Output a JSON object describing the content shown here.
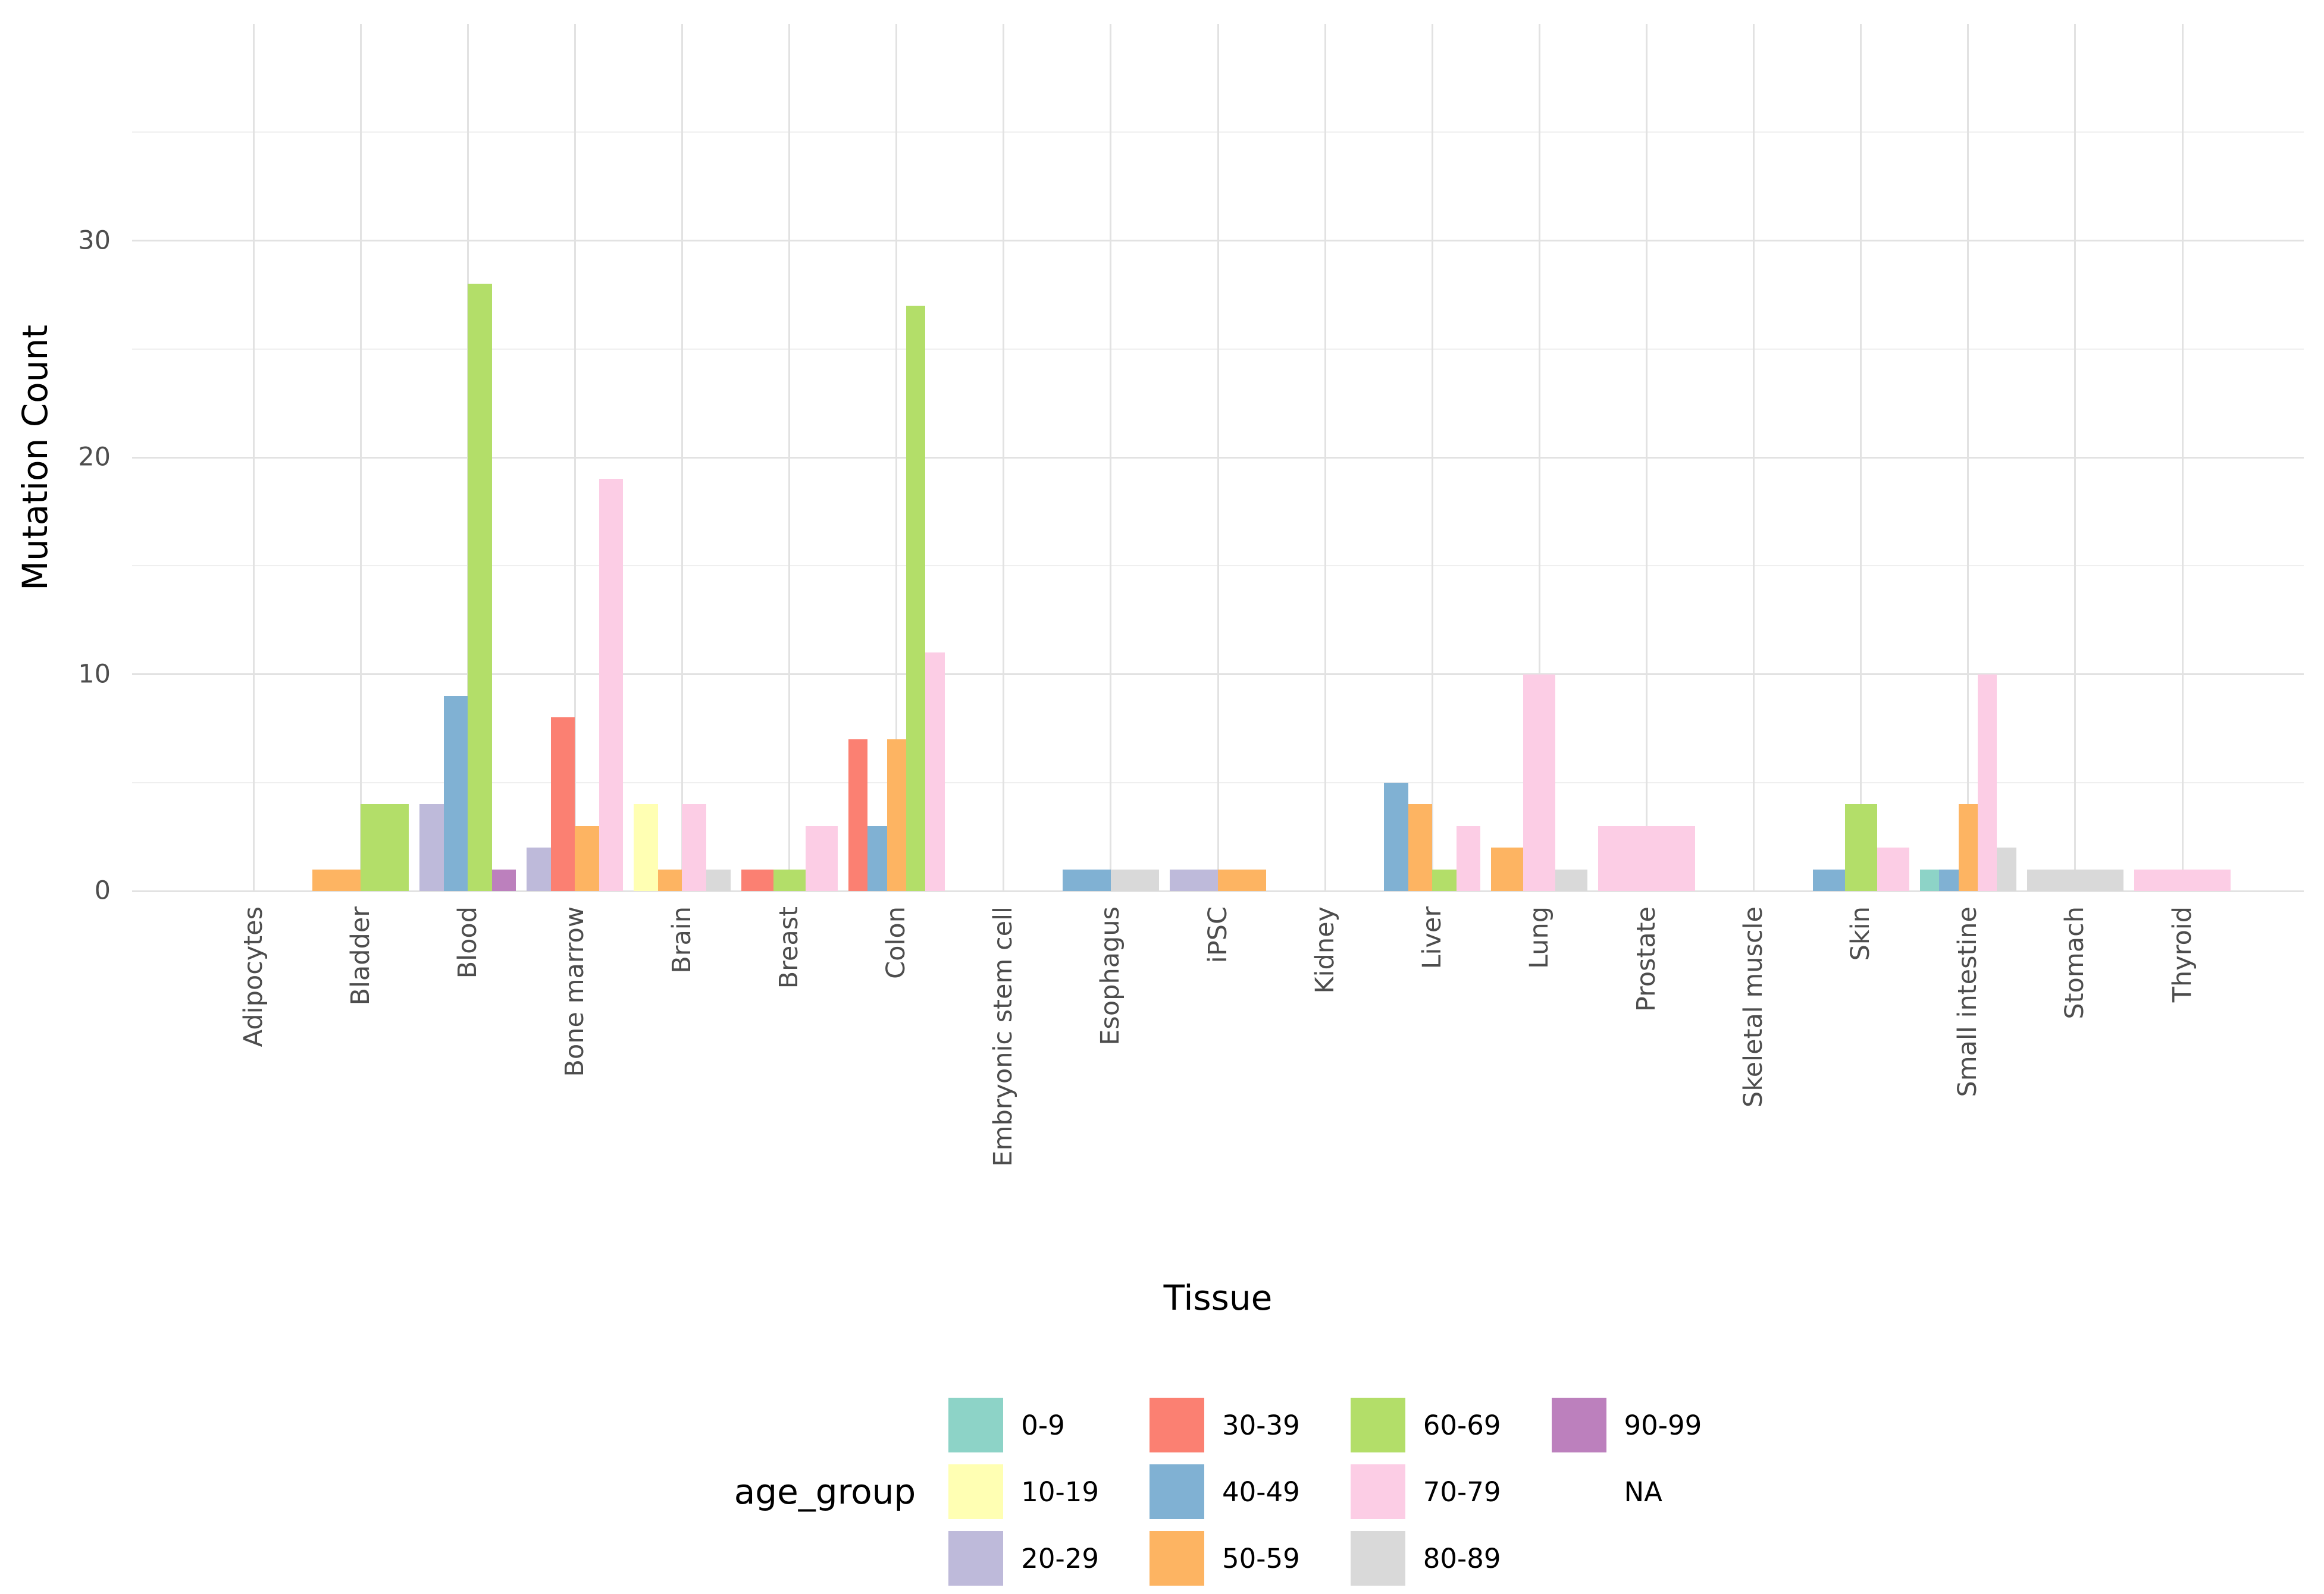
{
  "chart_data": {
    "type": "bar",
    "title": "",
    "xlabel": "Tissue",
    "ylabel": "Mutation Count",
    "legend_title": "age_group",
    "legend_position": "bottom",
    "grid": true,
    "ylim": [
      0,
      40
    ],
    "y_major_ticks": [
      0,
      10,
      20,
      30
    ],
    "y_minor_gridlines": [
      5,
      15,
      25,
      35
    ],
    "categories": [
      "Adipocytes",
      "Bladder",
      "Blood",
      "Bone marrow",
      "Brain",
      "Breast",
      "Colon",
      "Embryonic stem cell",
      "Esophagus",
      "iPSC",
      "Kidney",
      "Liver",
      "Lung",
      "Prostate",
      "Skeletal muscle",
      "Skin",
      "Small intestine",
      "Stomach",
      "Thyroid"
    ],
    "age_groups": [
      "0-9",
      "10-19",
      "20-29",
      "30-39",
      "40-49",
      "50-59",
      "60-69",
      "70-79",
      "80-89",
      "90-99",
      "NA"
    ],
    "colors": {
      "0-9": "#8DD3C7",
      "10-19": "#FFFFB3",
      "20-29": "#BEBADA",
      "30-39": "#FB8072",
      "40-49": "#80B1D3",
      "50-59": "#FDB462",
      "60-69": "#B3DE69",
      "70-79": "#FCCDE5",
      "80-89": "#D9D9D9",
      "90-99": "#BC80BD",
      "NA": "#FFFFFF"
    },
    "values": {
      "Adipocytes": [],
      "Bladder": [
        {
          "group": "50-59",
          "value": 1
        },
        {
          "group": "60-69",
          "value": 4
        }
      ],
      "Blood": [
        {
          "group": "20-29",
          "value": 4
        },
        {
          "group": "40-49",
          "value": 9
        },
        {
          "group": "60-69",
          "value": 28
        },
        {
          "group": "90-99",
          "value": 1
        }
      ],
      "Bone marrow": [
        {
          "group": "20-29",
          "value": 2
        },
        {
          "group": "30-39",
          "value": 8
        },
        {
          "group": "50-59",
          "value": 3
        },
        {
          "group": "70-79",
          "value": 19
        }
      ],
      "Brain": [
        {
          "group": "10-19",
          "value": 4
        },
        {
          "group": "50-59",
          "value": 1
        },
        {
          "group": "70-79",
          "value": 4
        },
        {
          "group": "80-89",
          "value": 1
        }
      ],
      "Breast": [
        {
          "group": "30-39",
          "value": 1
        },
        {
          "group": "60-69",
          "value": 1
        },
        {
          "group": "70-79",
          "value": 3
        }
      ],
      "Colon": [
        {
          "group": "30-39",
          "value": 7
        },
        {
          "group": "40-49",
          "value": 3
        },
        {
          "group": "50-59",
          "value": 7
        },
        {
          "group": "60-69",
          "value": 27
        },
        {
          "group": "70-79",
          "value": 11
        }
      ],
      "Embryonic stem cell": [],
      "Esophagus": [
        {
          "group": "40-49",
          "value": 1
        },
        {
          "group": "80-89",
          "value": 1
        }
      ],
      "iPSC": [
        {
          "group": "20-29",
          "value": 1
        },
        {
          "group": "50-59",
          "value": 1
        }
      ],
      "Kidney": [],
      "Liver": [
        {
          "group": "40-49",
          "value": 5
        },
        {
          "group": "50-59",
          "value": 4
        },
        {
          "group": "60-69",
          "value": 1
        },
        {
          "group": "70-79",
          "value": 3
        }
      ],
      "Lung": [
        {
          "group": "50-59",
          "value": 2
        },
        {
          "group": "70-79",
          "value": 10
        },
        {
          "group": "80-89",
          "value": 1
        }
      ],
      "Prostate": [
        {
          "group": "70-79",
          "value": 3
        }
      ],
      "Skeletal muscle": [],
      "Skin": [
        {
          "group": "40-49",
          "value": 1
        },
        {
          "group": "60-69",
          "value": 4
        },
        {
          "group": "70-79",
          "value": 2
        }
      ],
      "Small intestine": [
        {
          "group": "0-9",
          "value": 1
        },
        {
          "group": "40-49",
          "value": 1
        },
        {
          "group": "50-59",
          "value": 4
        },
        {
          "group": "70-79",
          "value": 10
        },
        {
          "group": "80-89",
          "value": 2
        }
      ],
      "Stomach": [
        {
          "group": "80-89",
          "value": 1
        }
      ],
      "Thyroid": [
        {
          "group": "70-79",
          "value": 1
        }
      ]
    },
    "style": {
      "major_gridline_color": "#e2e2e2",
      "minor_gridline_color": "#efefef",
      "axis_text_color": "#4d4d4d",
      "background": "#ffffff"
    }
  }
}
